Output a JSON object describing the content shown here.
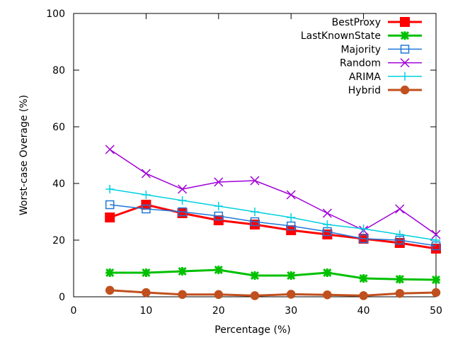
{
  "chart_data": {
    "type": "line",
    "title": "",
    "xlabel": "Percentage (%)",
    "ylabel": "Worst-case Overage (%)",
    "xlim": [
      0,
      50
    ],
    "ylim": [
      0,
      100
    ],
    "x_ticks": [
      0,
      10,
      20,
      30,
      40,
      50
    ],
    "y_ticks": [
      0,
      20,
      40,
      60,
      80,
      100
    ],
    "grid": false,
    "legend_position": "top-right",
    "x": [
      5,
      10,
      15,
      20,
      25,
      30,
      35,
      40,
      45,
      50
    ],
    "series": [
      {
        "name": "BestProxy",
        "color": "#ff0000",
        "marker": "filled-square",
        "line_width": 3,
        "values": [
          28,
          32.5,
          29.5,
          27,
          25.5,
          23.5,
          22,
          20.5,
          19,
          17
        ]
      },
      {
        "name": "LastKnownState",
        "color": "#00c000",
        "marker": "star",
        "line_width": 3,
        "values": [
          8.5,
          8.5,
          9,
          9.5,
          7.5,
          7.5,
          8.5,
          6.5,
          6.2,
          6
        ]
      },
      {
        "name": "Majority",
        "color": "#1e78d8",
        "marker": "open-square",
        "line_width": 1.5,
        "values": [
          32.5,
          31,
          30,
          28.5,
          26.5,
          25,
          23,
          20.5,
          20,
          18
        ]
      },
      {
        "name": "Random",
        "color": "#a000d8",
        "marker": "x",
        "line_width": 1.5,
        "values": [
          52,
          43.5,
          38,
          40.5,
          41,
          36,
          29.5,
          23.5,
          31,
          22
        ]
      },
      {
        "name": "ARIMA",
        "color": "#00d0e0",
        "marker": "plus",
        "line_width": 1.5,
        "values": [
          38,
          36,
          34,
          32,
          30,
          28,
          25.5,
          24,
          22,
          20
        ]
      },
      {
        "name": "Hybrid",
        "color": "#c0501e",
        "marker": "filled-circle",
        "line_width": 3,
        "values": [
          2.3,
          1.5,
          0.8,
          0.8,
          0.4,
          0.9,
          0.7,
          0.4,
          1.2,
          1.5
        ]
      }
    ]
  }
}
